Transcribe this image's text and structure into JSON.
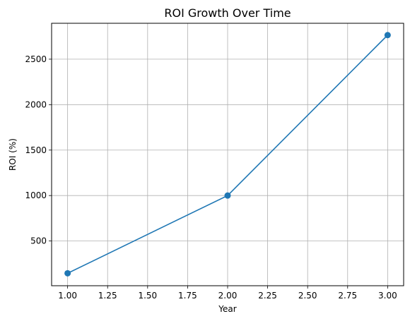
{
  "chart_data": {
    "type": "line",
    "title": "ROI Growth Over Time",
    "xlabel": "Year",
    "ylabel": "ROI (%)",
    "xlim": [
      0.9,
      3.1
    ],
    "ylim": [
      8,
      2895
    ],
    "xticks": [
      1.0,
      1.25,
      1.5,
      1.75,
      2.0,
      2.25,
      2.5,
      2.75,
      3.0
    ],
    "xtick_labels": [
      "1.00",
      "1.25",
      "1.50",
      "1.75",
      "2.00",
      "2.25",
      "2.50",
      "2.75",
      "3.00"
    ],
    "yticks": [
      500,
      1000,
      1500,
      2000,
      2500
    ],
    "ytick_labels": [
      "500",
      "1000",
      "1500",
      "2000",
      "2500"
    ],
    "grid": true,
    "series": [
      {
        "x": [
          1,
          2,
          3
        ],
        "values": [
          145,
          1000,
          2765
        ],
        "color": "#1f77b4",
        "marker": "circle"
      }
    ]
  }
}
